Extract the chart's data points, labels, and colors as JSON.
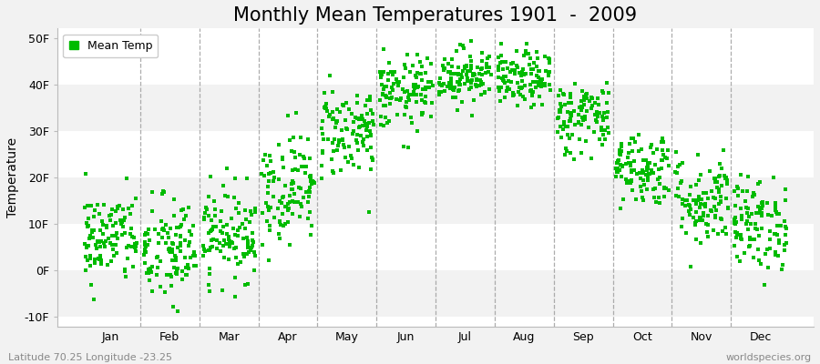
{
  "title": "Monthly Mean Temperatures 1901  -  2009",
  "ylabel": "Temperature",
  "subtitle": "Latitude 70.25 Longitude -23.25",
  "watermark": "worldspecies.org",
  "ylim": [
    -12,
    52
  ],
  "yticks": [
    -10,
    0,
    10,
    20,
    30,
    40,
    50
  ],
  "ytick_labels": [
    "-10F",
    "0F",
    "10F",
    "20F",
    "30F",
    "40F",
    "50F"
  ],
  "months": [
    "Jan",
    "Feb",
    "Mar",
    "Apr",
    "May",
    "Jun",
    "Jul",
    "Aug",
    "Sep",
    "Oct",
    "Nov",
    "Dec"
  ],
  "n_years": 109,
  "seed": 42,
  "mean_temps_f": [
    7,
    4,
    8,
    18,
    30,
    38,
    42,
    41,
    33,
    22,
    15,
    10
  ],
  "std_temps_f": [
    5,
    6,
    5,
    6,
    5,
    4,
    3,
    3,
    4,
    4,
    5,
    5
  ],
  "marker_color": "#00BB00",
  "marker_size": 5,
  "bg_color": "#f2f2f2",
  "plot_bg": "#ffffff",
  "band_colors": [
    "#f2f2f2",
    "#ffffff"
  ],
  "dashed_line_color": "#999999",
  "legend_label": "Mean Temp",
  "title_fontsize": 15,
  "axis_label_fontsize": 10,
  "tick_fontsize": 9
}
